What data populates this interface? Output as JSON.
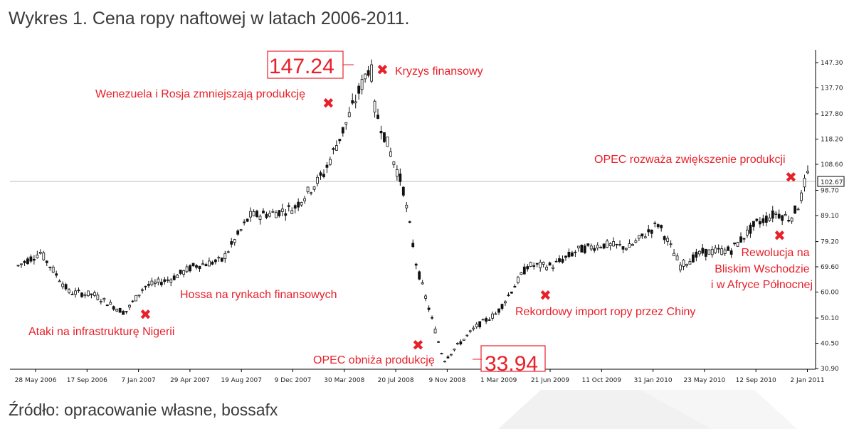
{
  "page": {
    "title": "Wykres 1. Cena ropy naftowej w latach 2006-2011.",
    "source": "Źródło: opracowanie własne, bossafx"
  },
  "chart_data": {
    "type": "candlestick",
    "title": "Wykres 1. Cena ropy naftowej w latach 2006-2011.",
    "xlabel": "",
    "ylabel": "",
    "ylim": [
      29.0,
      149.5
    ],
    "x_tick_labels": [
      "28 May 2006",
      "17 Sep 2006",
      "7 Jan 2007",
      "29 Apr 2007",
      "19 Aug 2007",
      "9 Dec 2007",
      "30 Mar 2008",
      "20 Jul 2008",
      "9 Nov 2008",
      "1 Mar 2009",
      "21 Jun 2009",
      "11 Oct 2009",
      "31 Jan 2010",
      "23 May 2010",
      "12 Sep 2010",
      "2 Jan 2011"
    ],
    "y_ticks": [
      "147.30",
      "137.70",
      "127.80",
      "118.20",
      "108.60",
      "98.70",
      "89.10",
      "79.20",
      "69.60",
      "60.00",
      "50.10",
      "40.50",
      "30.90"
    ],
    "current_price_label": "102.67",
    "current_price": 102.67,
    "max_label": "147.24",
    "max_value": 147.24,
    "min_label": "33.94",
    "min_value": 33.94,
    "trend": [
      {
        "date": "2006-05-28",
        "price": 70
      },
      {
        "date": "2006-07-16",
        "price": 75
      },
      {
        "date": "2006-09-17",
        "price": 60
      },
      {
        "date": "2006-11-10",
        "price": 59
      },
      {
        "date": "2007-01-18",
        "price": 52
      },
      {
        "date": "2007-03-01",
        "price": 62
      },
      {
        "date": "2007-04-29",
        "price": 65
      },
      {
        "date": "2007-06-20",
        "price": 70
      },
      {
        "date": "2007-08-19",
        "price": 72
      },
      {
        "date": "2007-10-20",
        "price": 89
      },
      {
        "date": "2007-12-09",
        "price": 90
      },
      {
        "date": "2008-01-25",
        "price": 92
      },
      {
        "date": "2008-03-30",
        "price": 105
      },
      {
        "date": "2008-05-20",
        "price": 125
      },
      {
        "date": "2008-07-11",
        "price": 147.24
      },
      {
        "date": "2008-07-20",
        "price": 130
      },
      {
        "date": "2008-08-20",
        "price": 115
      },
      {
        "date": "2008-09-20",
        "price": 100
      },
      {
        "date": "2008-10-20",
        "price": 70
      },
      {
        "date": "2008-11-09",
        "price": 58
      },
      {
        "date": "2008-12-19",
        "price": 33.94
      },
      {
        "date": "2009-01-20",
        "price": 40
      },
      {
        "date": "2009-03-01",
        "price": 47
      },
      {
        "date": "2009-04-15",
        "price": 52
      },
      {
        "date": "2009-06-21",
        "price": 70
      },
      {
        "date": "2009-08-15",
        "price": 70
      },
      {
        "date": "2009-10-11",
        "price": 76
      },
      {
        "date": "2009-12-01",
        "price": 78
      },
      {
        "date": "2010-01-31",
        "price": 77
      },
      {
        "date": "2010-04-05",
        "price": 86
      },
      {
        "date": "2010-05-23",
        "price": 70
      },
      {
        "date": "2010-07-10",
        "price": 75
      },
      {
        "date": "2010-09-12",
        "price": 76
      },
      {
        "date": "2010-11-05",
        "price": 86
      },
      {
        "date": "2010-12-20",
        "price": 90
      },
      {
        "date": "2011-01-20",
        "price": 88
      },
      {
        "date": "2011-02-10",
        "price": 94
      },
      {
        "date": "2011-02-25",
        "price": 105
      },
      {
        "date": "2011-03-05",
        "price": 102.67
      }
    ],
    "annotations": [
      {
        "text": "Ataki na infrastrukturę Nigerii",
        "date": "2007-02-10",
        "price": 52.5
      },
      {
        "text": "Hossa na rynkach finansowych",
        "date": "2007-07-15",
        "price": 62
      },
      {
        "text": "Wenezuela i Rosja zmniejszają produkcję",
        "date": "2008-03-25",
        "price": 131
      },
      {
        "text": "Kryzys finansowy",
        "date": "2008-08-05",
        "price": 144
      },
      {
        "text": "OPEC obniża produkcję",
        "date": "2008-10-30",
        "price": 42
      },
      {
        "text": "Rekordowy import ropy przez Chiny",
        "date": "2009-07-08",
        "price": 59
      },
      {
        "text": "OPEC rozważa zwiększenie produkcji",
        "date": "2011-01-18",
        "price": 104
      },
      {
        "text": "Rewolucja na Bliskim Wschodzie i w Afryce Północnej",
        "date": "2010-12-15",
        "price": 80
      }
    ]
  },
  "colors": {
    "annotation": "#e8202a",
    "candle": "#111111",
    "text": "#3a3a3a",
    "reference_line": "#bbbbbb"
  }
}
